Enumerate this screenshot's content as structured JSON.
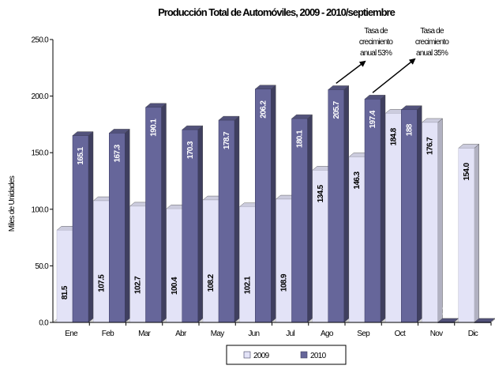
{
  "chart_data": {
    "type": "bar",
    "title": "Producción Total de Automóviles, 2009 - 2010/septiembre",
    "ylabel": "Miles de Unidades",
    "xlabel": "",
    "ylim": [
      0,
      250
    ],
    "yticks": [
      "0.0",
      "50.0",
      "100.0",
      "150.0",
      "200.0",
      "250.0"
    ],
    "categories": [
      "Ene",
      "Feb",
      "Mar",
      "Abr",
      "May",
      "Jun",
      "Jul",
      "Ago",
      "Sep",
      "Oct",
      "Nov",
      "Dic"
    ],
    "series": [
      {
        "name": "2009",
        "values": [
          81.5,
          107.5,
          102.7,
          100.4,
          108.2,
          102.1,
          108.9,
          134.5,
          146.3,
          184.8,
          176.7,
          154.0
        ],
        "labels": [
          "81.5",
          "107.5",
          "102.7",
          "100.4",
          "108.2",
          "102.1",
          "108.9",
          "134.5",
          "146.3",
          "184.8",
          "176.7",
          "154.0"
        ],
        "color": "#e3e3f7"
      },
      {
        "name": "2010",
        "values": [
          165.1,
          167.3,
          190.1,
          170.3,
          178.7,
          206.2,
          180.1,
          205.7,
          197.4,
          188.0,
          0.0,
          0.0
        ],
        "labels": [
          "165.1",
          "167.3",
          "190.1",
          "170.3",
          "178.7",
          "206.2",
          "180.1",
          "205.7",
          "197.4",
          "188",
          "0.0",
          "0.0"
        ],
        "color": "#66669a"
      }
    ],
    "annotations": [
      {
        "lines": [
          "Tasa de",
          "crecimiento",
          "anual 53%"
        ],
        "target": "Ago"
      },
      {
        "lines": [
          "Tasa de",
          "crecimiento",
          "anual 35%"
        ],
        "target": "Sep"
      }
    ],
    "legend": {
      "position": "bottom-center",
      "entries": [
        "2009",
        "2010"
      ]
    },
    "grid": false
  }
}
